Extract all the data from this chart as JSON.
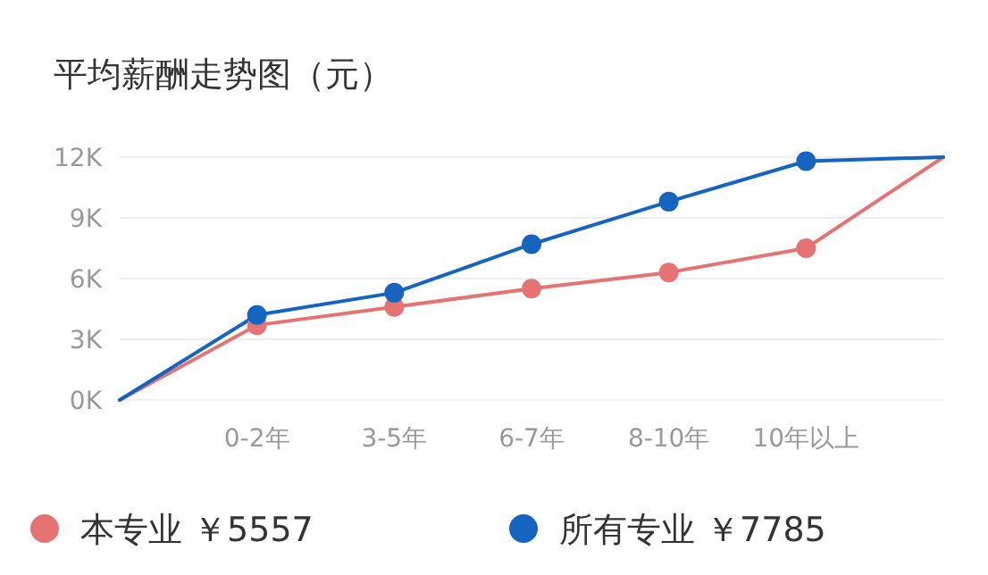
{
  "chart_data": {
    "type": "line",
    "title": "平均薪酬走势图（元）",
    "categories": [
      null,
      "0-2年",
      "3-5年",
      "6-7年",
      "8-10年",
      "10年以上",
      null
    ],
    "series": [
      {
        "name": "本专业 ￥5557",
        "color": "#e57373",
        "values": [
          0,
          3.7,
          4.6,
          5.5,
          6.3,
          7.5,
          12
        ]
      },
      {
        "name": "所有专业 ￥7785",
        "color": "#1565c0",
        "values": [
          0,
          4.2,
          5.3,
          7.7,
          9.8,
          11.8,
          12
        ]
      }
    ],
    "ylim": [
      0,
      12
    ],
    "yticks": [
      {
        "value": 0,
        "label": "0K"
      },
      {
        "value": 3,
        "label": "3K"
      },
      {
        "value": 6,
        "label": "6K"
      },
      {
        "value": 9,
        "label": "9K"
      },
      {
        "value": 12,
        "label": "12K"
      }
    ],
    "grid": "y",
    "legend": "bottom",
    "marker": "circle",
    "line_style": "solid"
  }
}
